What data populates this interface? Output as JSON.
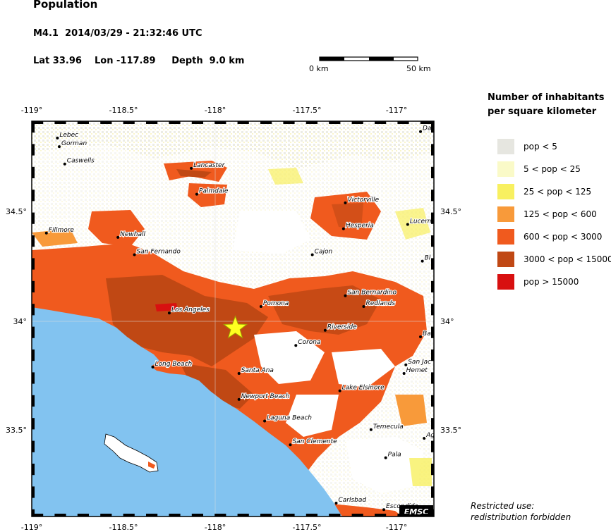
{
  "header": {
    "title": "Population",
    "event": "M4.1  2014/03/29 - 21:32:46 UTC",
    "location": "Lat 33.96    Lon -117.89     Depth  9.0 km"
  },
  "scale_bar": {
    "left_label": "0 km",
    "right_label": "50 km"
  },
  "axes": {
    "lon_labels": [
      "-119°",
      "-118.5°",
      "-118°",
      "-117.5°",
      "-117°"
    ],
    "lat_labels": [
      "34.5°",
      "34°",
      "33.5°"
    ]
  },
  "legend": {
    "title_line1": "Number of inhabitants",
    "title_line2": "per square kilometer",
    "items": [
      {
        "label": "pop < 5",
        "color": "#e6e6e0"
      },
      {
        "label": "5 < pop < 25",
        "color": "#fafac8"
      },
      {
        "label": "25 < pop < 125",
        "color": "#f8f060"
      },
      {
        "label": "125 < pop < 600",
        "color": "#f89a3a"
      },
      {
        "label": "600 < pop < 3000",
        "color": "#f05a1e"
      },
      {
        "label": "3000 < pop < 15000",
        "color": "#c04814"
      },
      {
        "label": "pop > 15000",
        "color": "#d81010"
      }
    ]
  },
  "epicenter": {
    "lat": 33.96,
    "lon": -117.89,
    "marker": "star-icon",
    "color": "#ffff20"
  },
  "cities": [
    {
      "name": "Lebec",
      "lon": -118.86,
      "lat": 34.84
    },
    {
      "name": "Gorman",
      "lon": -118.85,
      "lat": 34.8
    },
    {
      "name": "Caswells",
      "lon": -118.82,
      "lat": 34.72
    },
    {
      "name": "Lancaster",
      "lon": -118.13,
      "lat": 34.7
    },
    {
      "name": "Palmdale",
      "lon": -118.1,
      "lat": 34.58
    },
    {
      "name": "Fillmore",
      "lon": -118.92,
      "lat": 34.4
    },
    {
      "name": "Newhall",
      "lon": -118.53,
      "lat": 34.38
    },
    {
      "name": "San Fernando",
      "lon": -118.44,
      "lat": 34.3
    },
    {
      "name": "Los Angeles",
      "lon": -118.25,
      "lat": 34.03
    },
    {
      "name": "Long Beach",
      "lon": -118.34,
      "lat": 33.78
    },
    {
      "name": "Santa Ana",
      "lon": -117.87,
      "lat": 33.75
    },
    {
      "name": "Newport Beach",
      "lon": -117.87,
      "lat": 33.63
    },
    {
      "name": "Laguna Beach",
      "lon": -117.73,
      "lat": 33.53
    },
    {
      "name": "San Clemente",
      "lon": -117.59,
      "lat": 33.42
    },
    {
      "name": "Pomona",
      "lon": -117.75,
      "lat": 34.06
    },
    {
      "name": "Corona",
      "lon": -117.56,
      "lat": 33.88
    },
    {
      "name": "Riverside",
      "lon": -117.4,
      "lat": 33.95
    },
    {
      "name": "San Bernardino",
      "lon": -117.29,
      "lat": 34.11
    },
    {
      "name": "Redlands",
      "lon": -117.19,
      "lat": 34.06
    },
    {
      "name": "Victorville",
      "lon": -117.29,
      "lat": 34.54
    },
    {
      "name": "Hesperia",
      "lon": -117.3,
      "lat": 34.42
    },
    {
      "name": "Cajon",
      "lon": -117.47,
      "lat": 34.3
    },
    {
      "name": "Lucerne",
      "lon": -116.95,
      "lat": 34.44
    },
    {
      "name": "Dag",
      "lon": -116.88,
      "lat": 34.87
    },
    {
      "name": "Ba",
      "lon": -116.88,
      "lat": 33.92
    },
    {
      "name": "San Jac",
      "lon": -116.96,
      "lat": 33.79
    },
    {
      "name": "Hemet",
      "lon": -116.97,
      "lat": 33.75
    },
    {
      "name": "Lake Elsinore",
      "lon": -117.32,
      "lat": 33.67
    },
    {
      "name": "Temecula",
      "lon": -117.15,
      "lat": 33.49
    },
    {
      "name": "Ag",
      "lon": -116.86,
      "lat": 33.45
    },
    {
      "name": "Pala",
      "lon": -117.07,
      "lat": 33.36
    },
    {
      "name": "Carlsbad",
      "lon": -117.34,
      "lat": 33.15
    },
    {
      "name": "Escondido",
      "lon": -117.08,
      "lat": 33.12
    },
    {
      "name": "Bl",
      "lon": -116.87,
      "lat": 34.27
    }
  ],
  "watermark": "EMSC",
  "notice": {
    "line1": "Restricted use:",
    "line2": "redistribution forbidden"
  }
}
